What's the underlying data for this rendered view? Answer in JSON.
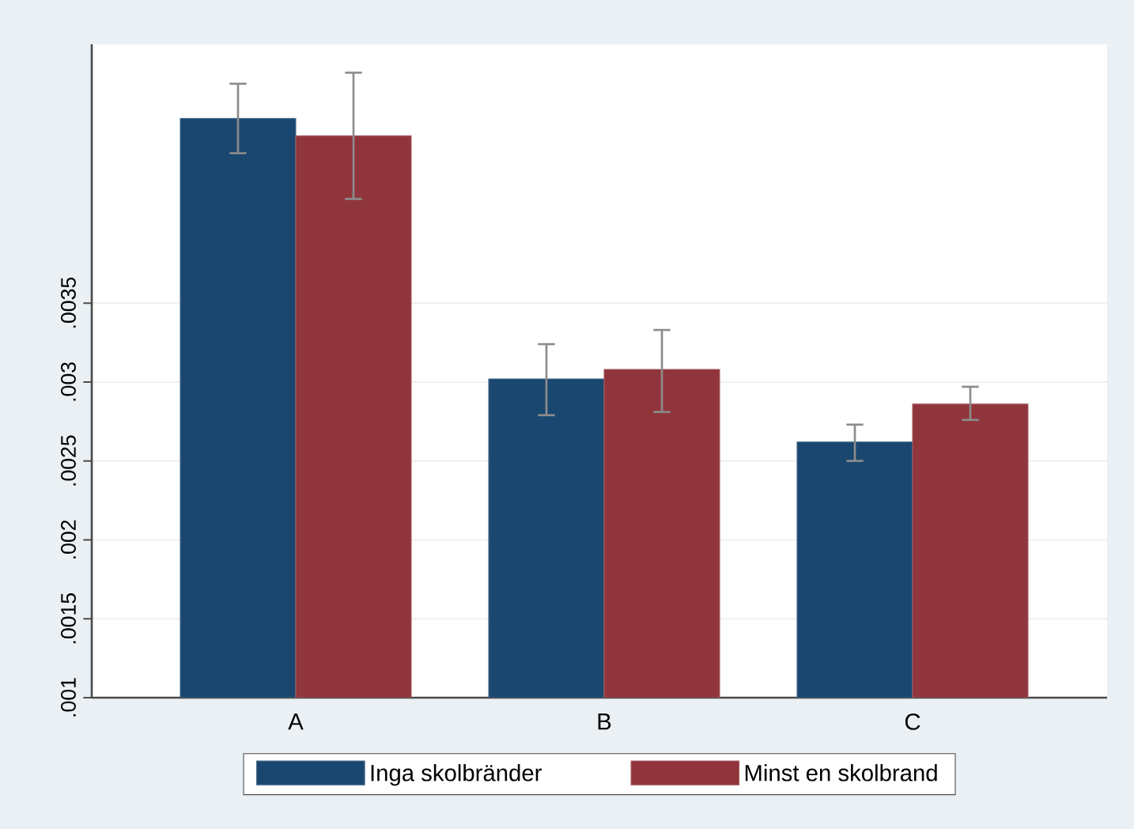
{
  "chart_data": {
    "type": "bar",
    "categories": [
      "A",
      "B",
      "C"
    ],
    "series": [
      {
        "name": "Inga skolbränder",
        "color": "#1a476f",
        "values": [
          0.00467,
          0.00302,
          0.00262
        ],
        "errors": [
          [
            0.00445,
            0.00489
          ],
          [
            0.00279,
            0.00324
          ],
          [
            0.0025,
            0.00273
          ]
        ]
      },
      {
        "name": "Minst en skolbrand",
        "color": "#90353b",
        "values": [
          0.00456,
          0.00308,
          0.00286
        ],
        "errors": [
          [
            0.00416,
            0.00496
          ],
          [
            0.00281,
            0.00333
          ],
          [
            0.00276,
            0.00297
          ]
        ]
      }
    ],
    "ylim": [
      0.001,
      0.00514
    ],
    "yticks": [
      {
        "value": 0.001,
        "label": ".001"
      },
      {
        "value": 0.0015,
        "label": ".0015"
      },
      {
        "value": 0.002,
        "label": ".002"
      },
      {
        "value": 0.0025,
        "label": ".0025"
      },
      {
        "value": 0.003,
        "label": ".003"
      },
      {
        "value": 0.0035,
        "label": ".0035"
      }
    ],
    "grid": "y",
    "legend": "bottom"
  }
}
